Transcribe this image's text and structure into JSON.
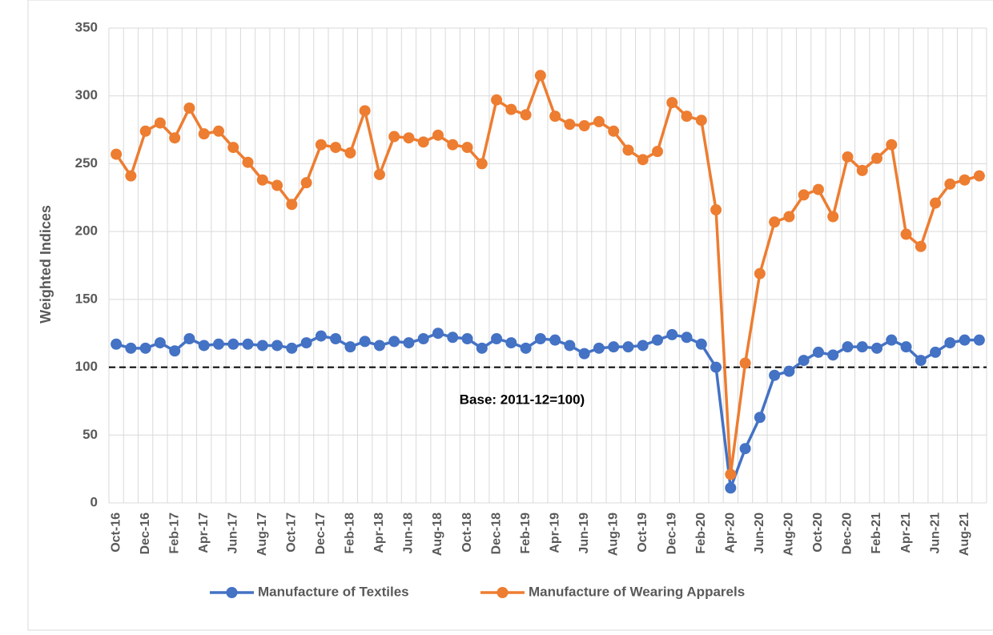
{
  "chart_data": {
    "type": "line",
    "y_label": "Weighted Indices",
    "annotation": "Base: 2011-12=100)",
    "reference_line": 100,
    "categories": [
      "Oct-16",
      null,
      "Dec-16",
      null,
      "Feb-17",
      null,
      "Apr-17",
      null,
      "Jun-17",
      null,
      "Aug-17",
      null,
      "Oct-17",
      null,
      "Dec-17",
      null,
      "Feb-18",
      null,
      "Apr-18",
      null,
      "Jun-18",
      null,
      "Aug-18",
      null,
      "Oct-18",
      null,
      "Dec-18",
      null,
      "Feb-19",
      null,
      "Apr-19",
      null,
      "Jun-19",
      null,
      "Aug-19",
      null,
      "Oct-19",
      null,
      "Dec-19",
      null,
      "Feb-20",
      null,
      "Apr-20",
      null,
      "Jun-20",
      null,
      "Aug-20",
      null,
      "Oct-20",
      null,
      "Dec-20",
      null,
      "Feb-21",
      null,
      "Apr-21",
      null,
      "Jun-21",
      null,
      "Aug-21",
      null
    ],
    "series": [
      {
        "name": "Manufacture of Textiles",
        "color": "#4472c4",
        "values": [
          117,
          114,
          114,
          118,
          112,
          121,
          116,
          117,
          117,
          117,
          116,
          116,
          114,
          118,
          123,
          121,
          115,
          119,
          116,
          119,
          118,
          121,
          125,
          122,
          121,
          114,
          121,
          118,
          114,
          121,
          120,
          116,
          110,
          114,
          115,
          115,
          116,
          120,
          124,
          122,
          117,
          100,
          11,
          40,
          63,
          94,
          97,
          105,
          111,
          109,
          115,
          115,
          114,
          120,
          115,
          105,
          111,
          118,
          120,
          120
        ]
      },
      {
        "name": "Manufacture of Wearing Apparels",
        "color": "#ed7d31",
        "values": [
          257,
          241,
          274,
          280,
          269,
          291,
          272,
          274,
          262,
          251,
          238,
          234,
          220,
          236,
          264,
          262,
          258,
          289,
          242,
          270,
          269,
          266,
          271,
          264,
          262,
          250,
          297,
          290,
          286,
          315,
          285,
          279,
          278,
          281,
          274,
          260,
          253,
          259,
          295,
          285,
          282,
          216,
          21,
          103,
          169,
          207,
          211,
          227,
          231,
          211,
          255,
          245,
          254,
          264,
          198,
          189,
          221,
          235,
          238,
          241
        ]
      }
    ],
    "ylim": [
      0,
      350
    ],
    "yticks": [
      0,
      50,
      100,
      150,
      200,
      250,
      300,
      350
    ],
    "grid": true
  }
}
